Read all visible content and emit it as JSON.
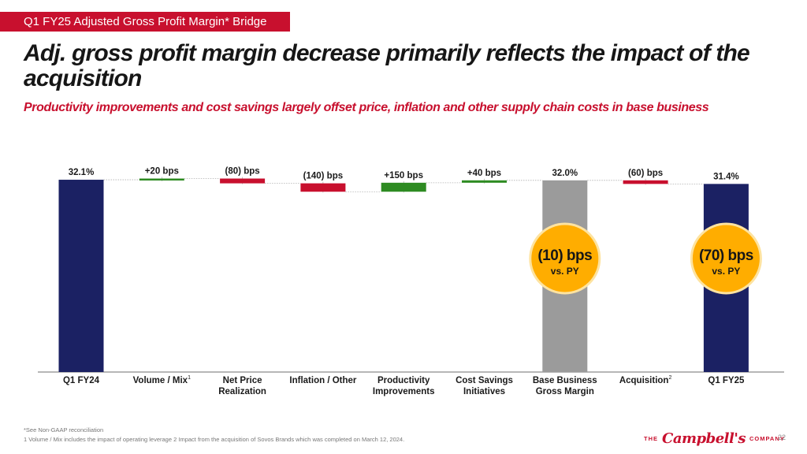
{
  "header": {
    "section_tag": "Q1 FY25 Adjusted Gross Profit Margin* Bridge",
    "title": "Adj. gross profit margin decrease primarily reflects the impact of the acquisition",
    "subtitle": "Productivity improvements and cost savings largely offset price, inflation and other supply chain costs in base business"
  },
  "colors": {
    "total": "#1b2163",
    "subtotal": "#9b9b9b",
    "increase": "#2e8b22",
    "decrease": "#c8102e",
    "callout": "#ffad00",
    "brand": "#c8102e"
  },
  "chart_data": {
    "type": "waterfall",
    "title": "Q1 FY25 Adjusted Gross Profit Margin* Bridge",
    "units": "% gross margin; deltas in bps",
    "categories": [
      "Q1 FY24",
      "Volume / Mix",
      "Net Price Realization",
      "Inflation / Other",
      "Productivity Improvements",
      "Cost Savings Initiatives",
      "Base Business Gross Margin",
      "Acquisition",
      "Q1 FY25"
    ],
    "category_label_lines": [
      [
        "Q1 FY24"
      ],
      [
        "Volume / Mix"
      ],
      [
        "Net Price",
        "Realization"
      ],
      [
        "Inflation / Other"
      ],
      [
        "Productivity",
        "Improvements"
      ],
      [
        "Cost Savings",
        "Initiatives"
      ],
      [
        "Base Business",
        "Gross Margin"
      ],
      [
        "Acquisition"
      ],
      [
        "Q1 FY25"
      ]
    ],
    "superscripts": [
      "",
      "1",
      "",
      "",
      "",
      "",
      "",
      "2",
      ""
    ],
    "kinds": [
      "total",
      "delta",
      "delta",
      "delta",
      "delta",
      "delta",
      "subtotal",
      "delta",
      "total"
    ],
    "values": [
      32.1,
      0.2,
      -0.8,
      -1.4,
      1.5,
      0.4,
      32.0,
      -0.6,
      31.4
    ],
    "value_labels": [
      "32.1%",
      "+20 bps",
      "(80) bps",
      "(140) bps",
      "+150 bps",
      "+40 bps",
      "32.0%",
      "(60) bps",
      "31.4%"
    ],
    "callouts": [
      {
        "category": "Base Business Gross Margin",
        "value": "(10) bps",
        "note": "vs. PY"
      },
      {
        "category": "Q1 FY25",
        "value": "(70) bps",
        "note": "vs. PY"
      }
    ],
    "xlabel": "",
    "ylabel": "",
    "grid": false,
    "legend": "none"
  },
  "footer": {
    "footnote_1": "*See Non-GAAP reconciliation",
    "footnote_2": "1 Volume / Mix includes the impact of operating leverage  2 Impact from the acquisition of Sovos Brands which was completed on March 12, 2024.",
    "logo_the": "THE",
    "logo_script": "Campbell's",
    "logo_company": "COMPANY",
    "page_number": "22"
  }
}
